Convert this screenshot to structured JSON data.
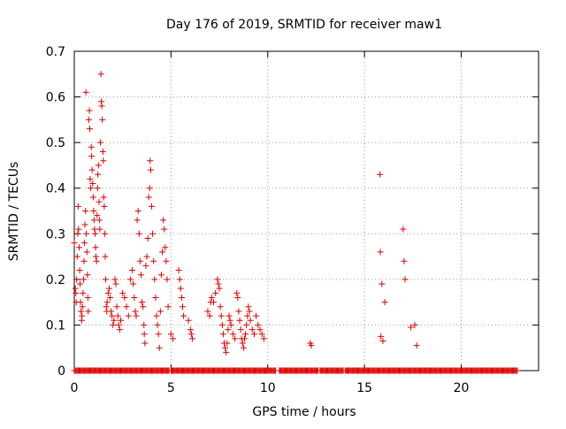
{
  "chart_data": {
    "type": "scatter",
    "title": "Day 176 of 2019, SRMTID for receiver maw1",
    "xlabel": "GPS time / hours",
    "ylabel": "SRMTID / TECUs",
    "xlim": [
      0,
      24
    ],
    "ylim": [
      0,
      0.7
    ],
    "xticks": [
      0,
      5,
      10,
      15,
      20
    ],
    "xtick_labels": [
      "0",
      "5",
      "10",
      "15",
      "20"
    ],
    "yticks": [
      0,
      0.1,
      0.2,
      0.3,
      0.4,
      0.5,
      0.6,
      0.7
    ],
    "ytick_labels": [
      "0",
      "0.1",
      "0.2",
      "0.3",
      "0.4",
      "0.5",
      "0.6",
      "0.7"
    ],
    "grid": true,
    "marker": "+",
    "color": "#dd0000",
    "series": [
      {
        "name": "SRMTID",
        "points": [
          [
            0.0,
            0.28
          ],
          [
            0.05,
            0.18
          ],
          [
            0.08,
            0.17
          ],
          [
            0.1,
            0.15
          ],
          [
            0.12,
            0.2
          ],
          [
            0.15,
            0.25
          ],
          [
            0.18,
            0.3
          ],
          [
            0.2,
            0.36
          ],
          [
            0.22,
            0.31
          ],
          [
            0.25,
            0.27
          ],
          [
            0.28,
            0.22
          ],
          [
            0.3,
            0.19
          ],
          [
            0.32,
            0.15
          ],
          [
            0.35,
            0.13
          ],
          [
            0.38,
            0.11
          ],
          [
            0.4,
            0.12
          ],
          [
            0.42,
            0.14
          ],
          [
            0.45,
            0.17
          ],
          [
            0.48,
            0.2
          ],
          [
            0.5,
            0.24
          ],
          [
            0.52,
            0.28
          ],
          [
            0.55,
            0.32
          ],
          [
            0.58,
            0.35
          ],
          [
            0.6,
            0.61
          ],
          [
            0.62,
            0.3
          ],
          [
            0.65,
            0.26
          ],
          [
            0.68,
            0.21
          ],
          [
            0.7,
            0.16
          ],
          [
            0.72,
            0.13
          ],
          [
            0.75,
            0.55
          ],
          [
            0.78,
            0.57
          ],
          [
            0.8,
            0.53
          ],
          [
            0.82,
            0.42
          ],
          [
            0.85,
            0.4
          ],
          [
            0.88,
            0.49
          ],
          [
            0.9,
            0.47
          ],
          [
            0.92,
            0.44
          ],
          [
            0.95,
            0.41
          ],
          [
            0.98,
            0.38
          ],
          [
            1.0,
            0.35
          ],
          [
            1.02,
            0.33
          ],
          [
            1.05,
            0.31
          ],
          [
            1.08,
            0.3
          ],
          [
            1.1,
            0.27
          ],
          [
            1.12,
            0.25
          ],
          [
            1.15,
            0.24
          ],
          [
            1.18,
            0.34
          ],
          [
            1.2,
            0.4
          ],
          [
            1.22,
            0.43
          ],
          [
            1.25,
            0.45
          ],
          [
            1.28,
            0.37
          ],
          [
            1.3,
            0.33
          ],
          [
            1.32,
            0.31
          ],
          [
            1.35,
            0.5
          ],
          [
            1.38,
            0.65
          ],
          [
            1.4,
            0.59
          ],
          [
            1.42,
            0.58
          ],
          [
            1.45,
            0.55
          ],
          [
            1.48,
            0.48
          ],
          [
            1.5,
            0.46
          ],
          [
            1.52,
            0.38
          ],
          [
            1.55,
            0.36
          ],
          [
            1.58,
            0.3
          ],
          [
            1.6,
            0.25
          ],
          [
            1.62,
            0.2
          ],
          [
            1.65,
            0.14
          ],
          [
            1.68,
            0.13
          ],
          [
            1.7,
            0.15
          ],
          [
            1.75,
            0.17
          ],
          [
            1.8,
            0.18
          ],
          [
            1.85,
            0.16
          ],
          [
            1.9,
            0.13
          ],
          [
            1.95,
            0.12
          ],
          [
            2.0,
            0.1
          ],
          [
            2.05,
            0.11
          ],
          [
            2.1,
            0.2
          ],
          [
            2.15,
            0.19
          ],
          [
            2.2,
            0.14
          ],
          [
            2.25,
            0.12
          ],
          [
            2.3,
            0.1
          ],
          [
            2.35,
            0.09
          ],
          [
            2.4,
            0.11
          ],
          [
            2.5,
            0.17
          ],
          [
            2.6,
            0.16
          ],
          [
            2.7,
            0.14
          ],
          [
            2.8,
            0.12
          ],
          [
            2.9,
            0.2
          ],
          [
            3.0,
            0.22
          ],
          [
            3.05,
            0.19
          ],
          [
            3.1,
            0.16
          ],
          [
            3.15,
            0.13
          ],
          [
            3.2,
            0.12
          ],
          [
            3.25,
            0.33
          ],
          [
            3.3,
            0.35
          ],
          [
            3.35,
            0.3
          ],
          [
            3.4,
            0.24
          ],
          [
            3.45,
            0.21
          ],
          [
            3.5,
            0.15
          ],
          [
            3.55,
            0.14
          ],
          [
            3.6,
            0.1
          ],
          [
            3.62,
            0.08
          ],
          [
            3.65,
            0.06
          ],
          [
            3.7,
            0.23
          ],
          [
            3.75,
            0.25
          ],
          [
            3.8,
            0.29
          ],
          [
            3.85,
            0.38
          ],
          [
            3.9,
            0.4
          ],
          [
            3.92,
            0.46
          ],
          [
            3.95,
            0.44
          ],
          [
            4.0,
            0.36
          ],
          [
            4.05,
            0.3
          ],
          [
            4.1,
            0.24
          ],
          [
            4.15,
            0.2
          ],
          [
            4.2,
            0.16
          ],
          [
            4.25,
            0.12
          ],
          [
            4.3,
            0.1
          ],
          [
            4.35,
            0.08
          ],
          [
            4.4,
            0.05
          ],
          [
            4.45,
            0.13
          ],
          [
            4.5,
            0.21
          ],
          [
            4.55,
            0.26
          ],
          [
            4.6,
            0.33
          ],
          [
            4.65,
            0.31
          ],
          [
            4.7,
            0.27
          ],
          [
            4.75,
            0.24
          ],
          [
            4.8,
            0.2
          ],
          [
            4.85,
            0.14
          ],
          [
            5.0,
            0.08
          ],
          [
            5.1,
            0.07
          ],
          [
            5.4,
            0.22
          ],
          [
            5.45,
            0.2
          ],
          [
            5.5,
            0.18
          ],
          [
            5.55,
            0.16
          ],
          [
            5.6,
            0.14
          ],
          [
            5.65,
            0.12
          ],
          [
            5.9,
            0.11
          ],
          [
            6.0,
            0.09
          ],
          [
            6.05,
            0.08
          ],
          [
            6.1,
            0.07
          ],
          [
            6.9,
            0.13
          ],
          [
            7.0,
            0.12
          ],
          [
            7.05,
            0.15
          ],
          [
            7.1,
            0.16
          ],
          [
            7.2,
            0.15
          ],
          [
            7.3,
            0.17
          ],
          [
            7.4,
            0.2
          ],
          [
            7.45,
            0.19
          ],
          [
            7.5,
            0.18
          ],
          [
            7.55,
            0.14
          ],
          [
            7.6,
            0.12
          ],
          [
            7.65,
            0.1
          ],
          [
            7.7,
            0.08
          ],
          [
            7.75,
            0.06
          ],
          [
            7.8,
            0.05
          ],
          [
            7.85,
            0.04
          ],
          [
            7.9,
            0.06
          ],
          [
            7.95,
            0.09
          ],
          [
            8.0,
            0.12
          ],
          [
            8.05,
            0.11
          ],
          [
            8.1,
            0.1
          ],
          [
            8.2,
            0.08
          ],
          [
            8.3,
            0.07
          ],
          [
            8.4,
            0.17
          ],
          [
            8.45,
            0.16
          ],
          [
            8.5,
            0.13
          ],
          [
            8.55,
            0.11
          ],
          [
            8.6,
            0.09
          ],
          [
            8.65,
            0.07
          ],
          [
            8.7,
            0.06
          ],
          [
            8.75,
            0.05
          ],
          [
            8.8,
            0.07
          ],
          [
            8.85,
            0.08
          ],
          [
            8.9,
            0.1
          ],
          [
            8.95,
            0.12
          ],
          [
            9.0,
            0.14
          ],
          [
            9.05,
            0.13
          ],
          [
            9.1,
            0.11
          ],
          [
            9.2,
            0.09
          ],
          [
            9.3,
            0.08
          ],
          [
            9.4,
            0.12
          ],
          [
            9.5,
            0.1
          ],
          [
            9.6,
            0.09
          ],
          [
            9.7,
            0.08
          ],
          [
            9.8,
            0.07
          ],
          [
            12.2,
            0.06
          ],
          [
            12.25,
            0.055
          ],
          [
            15.8,
            0.43
          ],
          [
            15.82,
            0.26
          ],
          [
            15.85,
            0.075
          ],
          [
            15.9,
            0.19
          ],
          [
            15.95,
            0.065
          ],
          [
            16.05,
            0.15
          ],
          [
            17.0,
            0.31
          ],
          [
            17.05,
            0.24
          ],
          [
            17.1,
            0.2
          ],
          [
            17.4,
            0.095
          ],
          [
            17.6,
            0.1
          ],
          [
            17.7,
            0.055
          ]
        ]
      }
    ],
    "zero_band": {
      "description": "dense markers along y = 0",
      "ranges": [
        [
          0.0,
          4.9
        ],
        [
          5.0,
          10.4
        ],
        [
          10.6,
          12.6
        ],
        [
          12.7,
          13.9
        ],
        [
          14.0,
          22.9
        ]
      ],
      "y": 0
    }
  }
}
